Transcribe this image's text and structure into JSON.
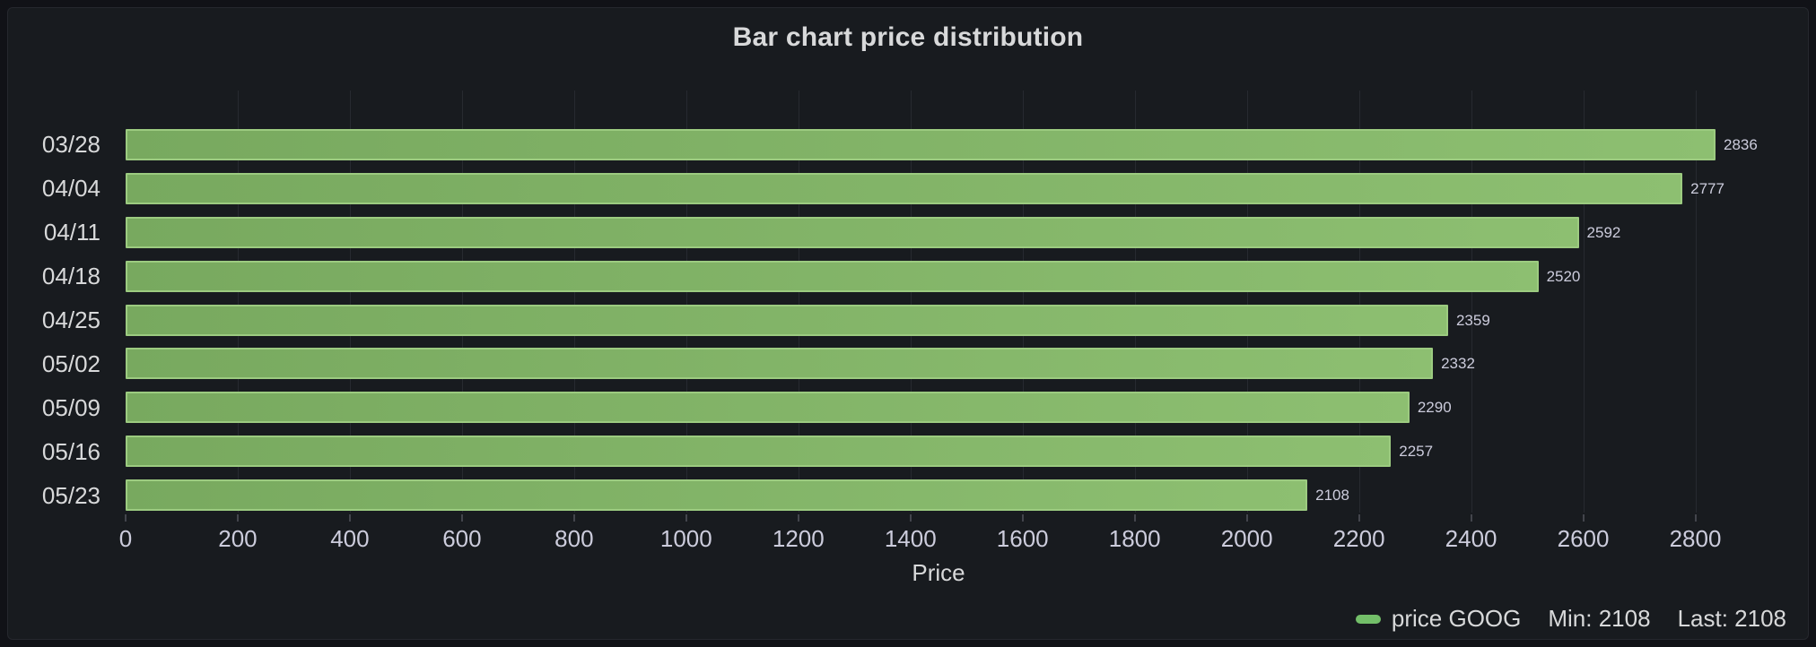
{
  "panel": {
    "title": "Bar chart price distribution"
  },
  "chart_data": {
    "type": "bar",
    "orientation": "horizontal",
    "title": "Bar chart price distribution",
    "categories": [
      "03/28",
      "04/04",
      "04/11",
      "04/18",
      "04/25",
      "05/02",
      "05/09",
      "05/16",
      "05/23"
    ],
    "series": [
      {
        "name": "price GOOG",
        "values": [
          2836,
          2777,
          2592,
          2520,
          2359,
          2332,
          2290,
          2257,
          2108
        ]
      }
    ],
    "xlabel": "Price",
    "ylabel": "",
    "x_ticks": [
      0,
      200,
      400,
      600,
      800,
      1000,
      1200,
      1400,
      1600,
      1800,
      2000,
      2200,
      2400,
      2600,
      2800
    ],
    "xlim": [
      0,
      2900
    ],
    "grid": "vertical",
    "value_labels_shown": true,
    "legend_position": "bottom-right",
    "bar_color": "#73bf69"
  },
  "legend": {
    "series_label": "price GOOG",
    "min_label": "Min: 2108",
    "last_label": "Last: 2108"
  },
  "colors": {
    "canvas": "#111217",
    "panel": "#181b1f",
    "panel_border": "#26282e",
    "text": "#ccccdc",
    "text_bright": "#d8d9da",
    "green": "#73bf69",
    "bar_fill_start": "#78a95f",
    "bar_fill_end": "#8dbf71",
    "bar_border": "#9ccb80"
  }
}
